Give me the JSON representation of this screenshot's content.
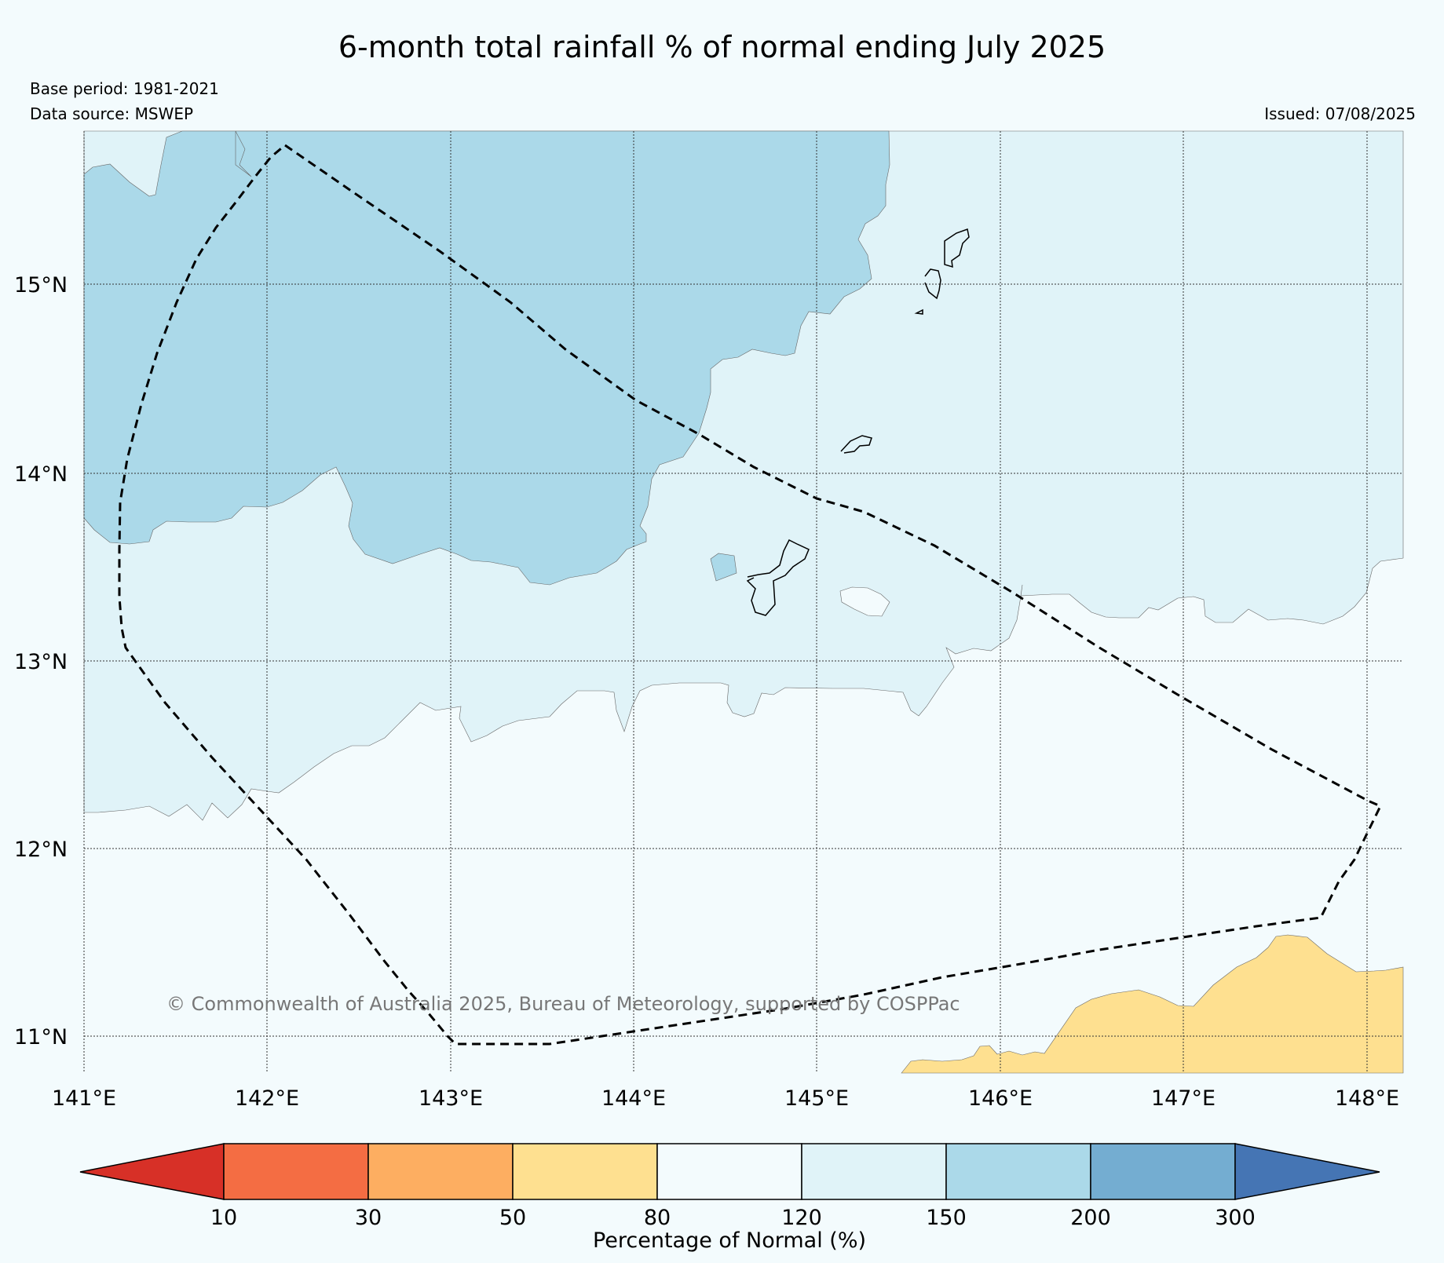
{
  "title": "6-month total rainfall % of normal ending July 2025",
  "base_period": "Base period: 1981-2021",
  "data_source": "Data source: MSWEP",
  "issued": "Issued: 07/08/2025",
  "copyright": "© Commonwealth of Australia 2025, Bureau of Meteorology, supported by COSPPac",
  "map": {
    "lon_labels": [
      "141°E",
      "142°E",
      "143°E",
      "144°E",
      "145°E",
      "146°E",
      "147°E",
      "148°E"
    ],
    "lat_labels": [
      "15°N",
      "14°N",
      "13°N",
      "12°N",
      "11°N"
    ],
    "lon_range": [
      141.0,
      148.2
    ],
    "lat_range": [
      10.8,
      15.8
    ]
  },
  "colorbar": {
    "label": "Percentage of Normal (%)",
    "ticks": [
      "10",
      "30",
      "50",
      "80",
      "120",
      "150",
      "200",
      "300"
    ],
    "colors": {
      "lt10": "#d73027",
      "10-30": "#f46d43",
      "30-50": "#fdae61",
      "50-80": "#fee090",
      "80-120": "#f3fbfd",
      "120-150": "#e0f3f8",
      "150-200": "#abd9e9",
      "200-300": "#74add1",
      "gt300": "#4575b4"
    }
  }
}
